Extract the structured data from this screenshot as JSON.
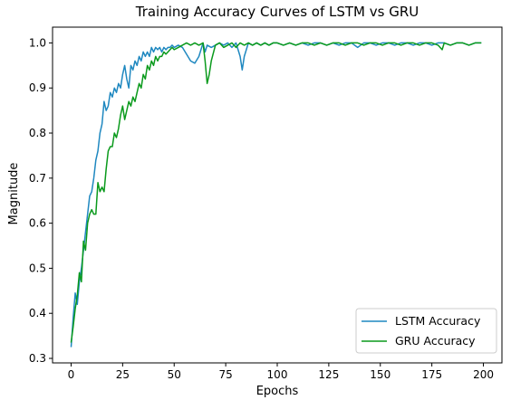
{
  "chart_data": {
    "type": "line",
    "title": "Training Accuracy Curves of LSTM vs GRU",
    "xlabel": "Epochs",
    "ylabel": "Magnitude",
    "xlim": [
      -9,
      209
    ],
    "ylim": [
      0.29,
      1.035
    ],
    "xticks": [
      0,
      25,
      50,
      75,
      100,
      125,
      150,
      175,
      200
    ],
    "yticks": [
      0.3,
      0.4,
      0.5,
      0.6,
      0.7,
      0.8,
      0.9,
      1.0
    ],
    "ytick_labels": [
      "0.3",
      "0.4",
      "0.5",
      "0.6",
      "0.7",
      "0.8",
      "0.9",
      "1.0"
    ],
    "grid": false,
    "legend_position": "lower right",
    "series": [
      {
        "name": "LSTM Accuracy",
        "color": "#1f88c0",
        "x": [
          0,
          1,
          2,
          3,
          4,
          5,
          6,
          7,
          8,
          9,
          10,
          11,
          12,
          13,
          14,
          15,
          16,
          17,
          18,
          19,
          20,
          21,
          22,
          23,
          24,
          25,
          26,
          27,
          28,
          29,
          30,
          31,
          32,
          33,
          34,
          35,
          36,
          37,
          38,
          39,
          40,
          41,
          42,
          43,
          44,
          45,
          46,
          47,
          48,
          49,
          50,
          52,
          54,
          56,
          58,
          60,
          62,
          64,
          65,
          66,
          68,
          70,
          72,
          74,
          76,
          78,
          80,
          82,
          83,
          84,
          86,
          88,
          90,
          92,
          94,
          96,
          98,
          100,
          103,
          106,
          109,
          112,
          115,
          118,
          121,
          124,
          127,
          130,
          133,
          136,
          139,
          142,
          145,
          148,
          151,
          154,
          157,
          160,
          163,
          166,
          169,
          172,
          175,
          178,
          181,
          184,
          187,
          190,
          193,
          196,
          199
        ],
        "y": [
          0.325,
          0.39,
          0.445,
          0.42,
          0.47,
          0.5,
          0.54,
          0.58,
          0.62,
          0.66,
          0.67,
          0.7,
          0.74,
          0.76,
          0.8,
          0.82,
          0.87,
          0.85,
          0.86,
          0.89,
          0.88,
          0.9,
          0.89,
          0.91,
          0.9,
          0.93,
          0.95,
          0.92,
          0.9,
          0.95,
          0.94,
          0.96,
          0.95,
          0.97,
          0.96,
          0.98,
          0.97,
          0.98,
          0.97,
          0.99,
          0.98,
          0.99,
          0.985,
          0.99,
          0.98,
          0.99,
          0.985,
          0.99,
          0.99,
          0.995,
          0.99,
          0.995,
          0.99,
          0.975,
          0.96,
          0.955,
          0.97,
          1.0,
          0.98,
          0.995,
          0.99,
          0.995,
          1.0,
          0.995,
          1.0,
          0.99,
          1.0,
          0.97,
          0.94,
          0.97,
          1.0,
          0.995,
          1.0,
          0.995,
          1.0,
          0.995,
          1.0,
          1.0,
          0.995,
          1.0,
          0.995,
          1.0,
          0.995,
          1.0,
          1.0,
          0.995,
          1.0,
          0.995,
          1.0,
          1.0,
          0.99,
          1.0,
          1.0,
          0.995,
          1.0,
          1.0,
          0.995,
          1.0,
          1.0,
          0.995,
          1.0,
          1.0,
          0.995,
          1.0,
          1.0,
          0.995,
          1.0,
          1.0,
          0.995,
          1.0,
          1.0
        ]
      },
      {
        "name": "GRU Accuracy",
        "color": "#0a9a1c",
        "x": [
          0,
          1,
          2,
          3,
          4,
          5,
          6,
          7,
          8,
          9,
          10,
          11,
          12,
          13,
          14,
          15,
          16,
          17,
          18,
          19,
          20,
          21,
          22,
          23,
          24,
          25,
          26,
          27,
          28,
          29,
          30,
          31,
          32,
          33,
          34,
          35,
          36,
          37,
          38,
          39,
          40,
          41,
          42,
          43,
          44,
          45,
          46,
          47,
          48,
          49,
          50,
          52,
          54,
          56,
          58,
          60,
          62,
          64,
          65,
          66,
          67,
          68,
          70,
          72,
          74,
          76,
          78,
          80,
          82,
          84,
          86,
          88,
          90,
          92,
          94,
          96,
          98,
          100,
          103,
          106,
          109,
          112,
          115,
          118,
          121,
          124,
          127,
          130,
          133,
          136,
          139,
          142,
          145,
          148,
          151,
          154,
          157,
          160,
          163,
          166,
          169,
          172,
          175,
          178,
          180,
          181,
          184,
          187,
          190,
          193,
          196,
          199
        ],
        "y": [
          0.335,
          0.37,
          0.41,
          0.44,
          0.49,
          0.47,
          0.56,
          0.54,
          0.6,
          0.62,
          0.63,
          0.62,
          0.62,
          0.69,
          0.67,
          0.68,
          0.67,
          0.72,
          0.76,
          0.77,
          0.77,
          0.8,
          0.79,
          0.81,
          0.84,
          0.86,
          0.83,
          0.85,
          0.87,
          0.86,
          0.88,
          0.87,
          0.89,
          0.91,
          0.9,
          0.93,
          0.92,
          0.95,
          0.94,
          0.96,
          0.95,
          0.97,
          0.96,
          0.97,
          0.97,
          0.98,
          0.975,
          0.98,
          0.985,
          0.99,
          0.985,
          0.99,
          0.995,
          1.0,
          0.995,
          1.0,
          0.995,
          1.0,
          0.96,
          0.91,
          0.93,
          0.96,
          0.995,
          1.0,
          0.99,
          0.995,
          1.0,
          0.99,
          1.0,
          0.995,
          1.0,
          0.995,
          1.0,
          0.995,
          1.0,
          0.995,
          1.0,
          1.0,
          0.995,
          1.0,
          0.995,
          1.0,
          1.0,
          0.995,
          1.0,
          0.995,
          1.0,
          1.0,
          0.995,
          1.0,
          1.0,
          0.995,
          1.0,
          1.0,
          0.995,
          1.0,
          1.0,
          0.995,
          1.0,
          1.0,
          0.995,
          1.0,
          1.0,
          0.995,
          0.985,
          1.0,
          0.995,
          1.0,
          1.0,
          0.995,
          1.0,
          1.0
        ]
      }
    ]
  }
}
